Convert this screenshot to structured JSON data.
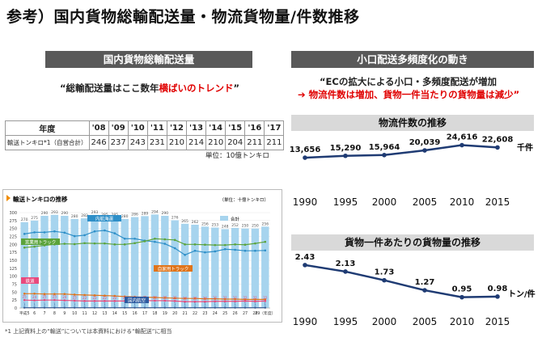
{
  "page_title": "参考）国内貨物総輸配送量・物流貨物量/件数推移",
  "left": {
    "header": "国内貨物総輸配送量",
    "quote_open": "“総輸配送量はここ数年",
    "quote_red": "横ばいのトレンド",
    "quote_close": "”",
    "table": {
      "corner": "年度",
      "years": [
        "'08",
        "'09",
        "'10",
        "'11",
        "'12",
        "'13",
        "'14",
        "'15",
        "'16",
        "'17"
      ],
      "row_label": "輸送トンキロ*1（自営合計）",
      "values": [
        "246",
        "237",
        "243",
        "231",
        "210",
        "214",
        "210",
        "204",
        "211",
        "211"
      ]
    },
    "unit": "単位：10億トンキロ",
    "panel": {
      "title": "輸送トンキロの推移",
      "unit_note": "（単位：十億トンキロ）",
      "legend_total": "合計",
      "label_coastal": "内航海運",
      "label_commercial": "営業用トラック",
      "label_private": "自家用トラック",
      "label_rail": "鉄道",
      "label_air": "国内航空",
      "y_ticks": [
        "0",
        "25",
        "50",
        "75",
        "100",
        "125",
        "150",
        "175",
        "200",
        "225",
        "250",
        "275",
        "300"
      ],
      "x_labels": [
        "平成5",
        "6",
        "7",
        "8",
        "9",
        "10",
        "11",
        "12",
        "13",
        "14",
        "15",
        "16",
        "17",
        "18",
        "19",
        "20",
        "21",
        "22",
        "23",
        "24",
        "25",
        "26",
        "27",
        "28",
        "29（年度）"
      ]
    },
    "footnote": "*1 上記資料上の“輸送”については本資料における“輸配送”に相当"
  },
  "right": {
    "header": "小口配送多頻度化の動き",
    "quote_line1": "“ECの拡大による小口・多頻度配送が増加",
    "arrow": "➔",
    "quote_line2": "物流件数は増加、貨物一件当たりの貨物量は減少”",
    "chart1": {
      "subheader": "物流件数の推移",
      "unit_label": "千件"
    },
    "chart2": {
      "subheader": "貨物一件あたりの貨物量の推移",
      "unit_label": "トン/件"
    }
  },
  "chart_data": [
    {
      "type": "line",
      "title": "物流件数の推移",
      "x": [
        1990,
        1995,
        2000,
        2005,
        2010,
        2015
      ],
      "values": [
        13656,
        15290,
        15964,
        20039,
        24616,
        22608
      ],
      "labels": [
        "13,656",
        "15,290",
        "15,964",
        "20,039",
        "24,616",
        "22,608"
      ],
      "ylabel": "千件",
      "color": "#1f3b73"
    },
    {
      "type": "line",
      "title": "貨物一件あたりの貨物量の推移",
      "x": [
        1990,
        1995,
        2000,
        2005,
        2010,
        2015
      ],
      "values": [
        2.43,
        2.13,
        1.73,
        1.27,
        0.95,
        0.98
      ],
      "labels": [
        "2.43",
        "2.13",
        "1.73",
        "1.27",
        "0.95",
        "0.98"
      ],
      "ylabel": "トン/件",
      "color": "#1f3b73"
    },
    {
      "type": "bar",
      "title": "輸送トンキロの推移",
      "categories": [
        "平成5",
        "6",
        "7",
        "8",
        "9",
        "10",
        "11",
        "12",
        "13",
        "14",
        "15",
        "16",
        "17",
        "18",
        "19",
        "20",
        "21",
        "22",
        "23",
        "24",
        "25",
        "26",
        "27",
        "28",
        "29"
      ],
      "series": [
        {
          "name": "合計",
          "values": [
            270,
            275,
            290,
            293,
            290,
            280,
            282,
            293,
            285,
            285,
            280,
            286,
            289,
            294,
            290,
            276,
            265,
            262,
            256,
            253,
            248,
            252,
            250,
            250,
            256
          ]
        },
        {
          "name": "内航海運",
          "values": [
            233,
            238,
            238,
            241,
            237,
            226,
            229,
            241,
            244,
            235,
            218,
            218,
            212,
            208,
            202,
            188,
            167,
            180,
            175,
            178,
            185,
            183,
            180,
            180,
            181
          ]
        },
        {
          "name": "営業用トラック",
          "values": [
            190,
            193,
            197,
            200,
            202,
            201,
            204,
            203,
            203,
            200,
            200,
            204,
            210,
            218,
            216,
            214,
            200,
            200,
            199,
            198,
            198,
            200,
            199,
            203,
            208
          ]
        },
        {
          "name": "自家用トラック",
          "values": [
            45,
            45,
            44,
            44,
            44,
            42,
            41,
            40,
            39,
            38,
            36,
            35,
            34,
            33,
            32,
            31,
            30,
            30,
            29,
            29,
            28,
            28,
            27,
            27,
            27
          ]
        },
        {
          "name": "鉄道",
          "values": [
            25,
            24,
            25,
            25,
            24,
            23,
            22,
            22,
            22,
            22,
            22,
            22,
            23,
            23,
            23,
            22,
            20,
            20,
            20,
            21,
            21,
            21,
            22,
            21,
            22
          ]
        },
        {
          "name": "国内航空",
          "values": [
            1,
            1,
            1,
            1,
            1,
            1,
            1,
            1,
            1,
            1,
            1,
            1,
            1,
            1,
            1,
            1,
            1,
            1,
            1,
            1,
            1,
            1,
            1,
            1,
            1
          ]
        }
      ],
      "ylim": [
        0,
        300
      ]
    }
  ]
}
